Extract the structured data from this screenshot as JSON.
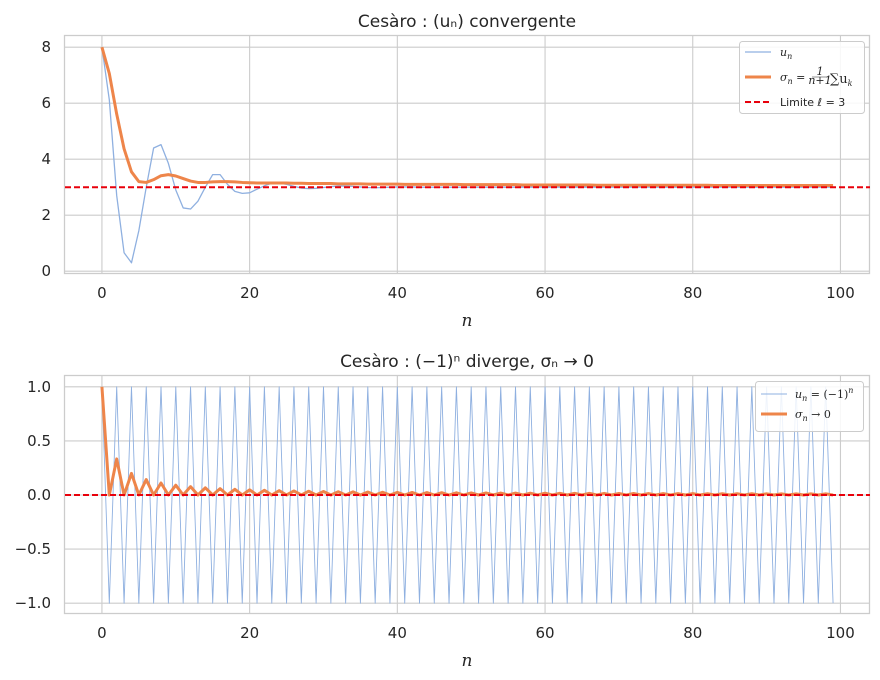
{
  "chart_data": [
    {
      "type": "line",
      "title": "Cesàro : (uₙ) convergente",
      "xlabel": "n",
      "ylabel": "",
      "xlim": [
        -5,
        104
      ],
      "ylim": [
        -0.1,
        8.4
      ],
      "xticks": [
        0,
        20,
        40,
        60,
        80,
        100
      ],
      "xtick_labels": [
        "0",
        "20",
        "40",
        "60",
        "80",
        "100"
      ],
      "yticks": [
        0,
        2,
        4,
        6,
        8
      ],
      "ytick_labels": [
        "0",
        "2",
        "4",
        "6",
        "8"
      ],
      "grid": true,
      "legend_position": "top-right",
      "series": [
        {
          "name": "uₙ",
          "color": "#8fb0e0",
          "values": [
            8.0,
            6.12,
            2.7,
            0.66,
            0.3,
            1.45,
            3.0,
            4.4,
            4.52,
            3.85,
            2.9,
            2.26,
            2.22,
            2.5,
            3.0,
            3.45,
            3.45,
            3.1,
            2.85,
            2.78,
            2.8,
            2.93,
            3.05,
            3.14,
            3.15,
            3.1,
            3.03,
            2.97,
            2.95,
            2.96,
            2.99,
            3.02,
            3.04,
            3.04,
            3.03,
            3.01,
            2.99,
            2.98,
            2.99,
            3.0,
            3.01,
            3.01,
            3.01,
            3.0,
            3.0,
            3.0,
            3.0,
            3.0,
            3.0,
            3.0,
            3.0,
            3.0,
            3.0,
            3.0,
            3.0,
            3.0,
            3.0,
            3.0,
            3.0,
            3.0,
            3.0,
            3.0,
            3.0,
            3.0,
            3.0,
            3.0,
            3.0,
            3.0,
            3.0,
            3.0,
            3.0,
            3.0,
            3.0,
            3.0,
            3.0,
            3.0,
            3.0,
            3.0,
            3.0,
            3.0,
            3.0,
            3.0,
            3.0,
            3.0,
            3.0,
            3.0,
            3.0,
            3.0,
            3.0,
            3.0,
            3.0,
            3.0,
            3.0,
            3.0,
            3.0,
            3.0,
            3.0,
            3.0,
            3.0,
            3.0
          ]
        },
        {
          "name": "σₙ = 1/(n+1) ∑ uₖ",
          "color": "#ee854a",
          "values": [
            8.0,
            7.06,
            5.61,
            4.37,
            3.55,
            3.2,
            3.17,
            3.27,
            3.41,
            3.45,
            3.4,
            3.31,
            3.22,
            3.17,
            3.17,
            3.19,
            3.2,
            3.2,
            3.19,
            3.17,
            3.16,
            3.15,
            3.15,
            3.15,
            3.15,
            3.15,
            3.14,
            3.14,
            3.13,
            3.13,
            3.13,
            3.13,
            3.12,
            3.12,
            3.12,
            3.12,
            3.11,
            3.11,
            3.11,
            3.11,
            3.11,
            3.1,
            3.1,
            3.1,
            3.1,
            3.1,
            3.1,
            3.1,
            3.1,
            3.09,
            3.09,
            3.09,
            3.09,
            3.09,
            3.09,
            3.09,
            3.09,
            3.08,
            3.08,
            3.08,
            3.08,
            3.08,
            3.08,
            3.08,
            3.08,
            3.08,
            3.08,
            3.07,
            3.07,
            3.07,
            3.07,
            3.07,
            3.07,
            3.07,
            3.07,
            3.07,
            3.07,
            3.07,
            3.07,
            3.07,
            3.07,
            3.07,
            3.07,
            3.06,
            3.06,
            3.06,
            3.06,
            3.06,
            3.06,
            3.06,
            3.06,
            3.06,
            3.06,
            3.06,
            3.06,
            3.06,
            3.06,
            3.06,
            3.06,
            3.06
          ]
        },
        {
          "name": "Limite ℓ = 3",
          "color": "#e8000b",
          "type": "hline",
          "value": 3
        }
      ]
    },
    {
      "type": "line",
      "title": "Cesàro : (−1)ⁿ diverge, σₙ → 0",
      "xlabel": "n",
      "ylabel": "",
      "xlim": [
        -5,
        104
      ],
      "ylim": [
        -1.1,
        1.1
      ],
      "xticks": [
        0,
        20,
        40,
        60,
        80,
        100
      ],
      "xtick_labels": [
        "0",
        "20",
        "40",
        "60",
        "80",
        "100"
      ],
      "yticks": [
        -1.0,
        -0.5,
        0.0,
        0.5,
        1.0
      ],
      "ytick_labels": [
        "−1.0",
        "−0.5",
        "0.0",
        "0.5",
        "1.0"
      ],
      "grid": true,
      "legend_position": "top-right",
      "series": [
        {
          "name": "uₙ = (−1)ⁿ",
          "color": "#8fb0e0",
          "rule": "alternating",
          "n_points": 100
        },
        {
          "name": "σₙ → 0",
          "color": "#ee854a",
          "rule": "cesaro_alternating",
          "n_points": 100
        },
        {
          "name": "",
          "color": "#e8000b",
          "type": "hline",
          "value": 0
        }
      ]
    }
  ],
  "legend": {
    "top": [
      {
        "label_main": "u",
        "label_sub": "n",
        "label_rest": ""
      },
      {
        "label_main": "σ",
        "label_sub": "n",
        "label_rest": " = ",
        "frac_num": "1",
        "frac_den": "n+1",
        "sum": "∑u",
        "sum_sub": "k"
      },
      {
        "label_main": "Limite ℓ = 3",
        "label_sub": "",
        "label_rest": ""
      }
    ],
    "bottom": [
      {
        "label_main": "u",
        "label_sub": "n",
        "label_rest": " = (−1)",
        "sup": "n"
      },
      {
        "label_main": "σ",
        "label_sub": "n",
        "label_rest": " → 0"
      }
    ]
  }
}
